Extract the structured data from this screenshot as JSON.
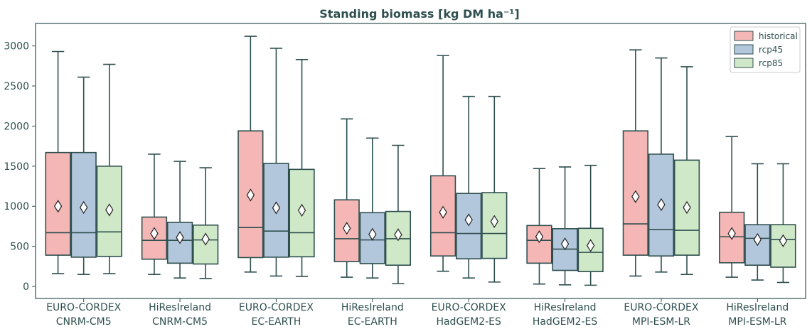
{
  "chart_data": {
    "type": "box",
    "title": "Standing biomass [kg DM ha⁻¹]",
    "xlabel": "",
    "ylabel": "",
    "ylim": [
      -150,
      3280
    ],
    "yticks": [
      0,
      500,
      1000,
      1500,
      2000,
      2500,
      3000
    ],
    "categories": [
      [
        "EURO-CORDEX",
        "CNRM-CM5"
      ],
      [
        "HiResIreland",
        "CNRM-CM5"
      ],
      [
        "EURO-CORDEX",
        "EC-EARTH"
      ],
      [
        "HiResIreland",
        "EC-EARTH"
      ],
      [
        "EURO-CORDEX",
        "HadGEM2-ES"
      ],
      [
        "HiResIreland",
        "HadGEM2-ES"
      ],
      [
        "EURO-CORDEX",
        "MPI-ESM-LR"
      ],
      [
        "HiResIreland",
        "MPI-ESM-LR"
      ]
    ],
    "legend_position": "top-right",
    "series": [
      {
        "name": "historical",
        "color": "#f4b7b5",
        "boxes": [
          {
            "whislo": 160,
            "q1": 390,
            "med": 670,
            "q3": 1670,
            "whishi": 2930,
            "mean": 1000
          },
          {
            "whislo": 150,
            "q1": 340,
            "med": 575,
            "q3": 865,
            "whishi": 1650,
            "mean": 660
          },
          {
            "whislo": 180,
            "q1": 360,
            "med": 735,
            "q3": 1940,
            "whishi": 3120,
            "mean": 1140
          },
          {
            "whislo": 115,
            "q1": 310,
            "med": 595,
            "q3": 1080,
            "whishi": 2090,
            "mean": 725
          },
          {
            "whislo": 190,
            "q1": 380,
            "med": 670,
            "q3": 1380,
            "whishi": 2880,
            "mean": 925
          },
          {
            "whislo": 30,
            "q1": 290,
            "med": 575,
            "q3": 760,
            "whishi": 1470,
            "mean": 620
          },
          {
            "whislo": 130,
            "q1": 390,
            "med": 780,
            "q3": 1940,
            "whishi": 2950,
            "mean": 1120
          },
          {
            "whislo": 115,
            "q1": 295,
            "med": 620,
            "q3": 925,
            "whishi": 1870,
            "mean": 660
          }
        ]
      },
      {
        "name": "rcp45",
        "color": "#b3c7dc",
        "boxes": [
          {
            "whislo": 150,
            "q1": 365,
            "med": 670,
            "q3": 1670,
            "whishi": 2610,
            "mean": 985
          },
          {
            "whislo": 105,
            "q1": 290,
            "med": 575,
            "q3": 800,
            "whishi": 1560,
            "mean": 610
          },
          {
            "whislo": 130,
            "q1": 365,
            "med": 690,
            "q3": 1535,
            "whishi": 2970,
            "mean": 980
          },
          {
            "whislo": 105,
            "q1": 285,
            "med": 580,
            "q3": 920,
            "whishi": 1850,
            "mean": 650
          },
          {
            "whislo": 105,
            "q1": 345,
            "med": 660,
            "q3": 1160,
            "whishi": 2370,
            "mean": 830
          },
          {
            "whislo": 20,
            "q1": 200,
            "med": 465,
            "q3": 720,
            "whishi": 1490,
            "mean": 530
          },
          {
            "whislo": 180,
            "q1": 380,
            "med": 710,
            "q3": 1650,
            "whishi": 2850,
            "mean": 1020
          },
          {
            "whislo": 80,
            "q1": 265,
            "med": 600,
            "q3": 770,
            "whishi": 1530,
            "mean": 585
          }
        ]
      },
      {
        "name": "rcp85",
        "color": "#cfe8c8",
        "boxes": [
          {
            "whislo": 160,
            "q1": 375,
            "med": 680,
            "q3": 1500,
            "whishi": 2770,
            "mean": 955
          },
          {
            "whislo": 100,
            "q1": 280,
            "med": 580,
            "q3": 765,
            "whishi": 1480,
            "mean": 590
          },
          {
            "whislo": 125,
            "q1": 370,
            "med": 670,
            "q3": 1460,
            "whishi": 2830,
            "mean": 950
          },
          {
            "whislo": 35,
            "q1": 265,
            "med": 595,
            "q3": 935,
            "whishi": 1760,
            "mean": 645
          },
          {
            "whislo": 55,
            "q1": 350,
            "med": 660,
            "q3": 1170,
            "whishi": 2370,
            "mean": 810
          },
          {
            "whislo": 15,
            "q1": 185,
            "med": 425,
            "q3": 725,
            "whishi": 1510,
            "mean": 510
          },
          {
            "whislo": 150,
            "q1": 390,
            "med": 700,
            "q3": 1575,
            "whishi": 2740,
            "mean": 985
          },
          {
            "whislo": 50,
            "q1": 240,
            "med": 585,
            "q3": 770,
            "whishi": 1530,
            "mean": 570
          }
        ]
      }
    ]
  }
}
